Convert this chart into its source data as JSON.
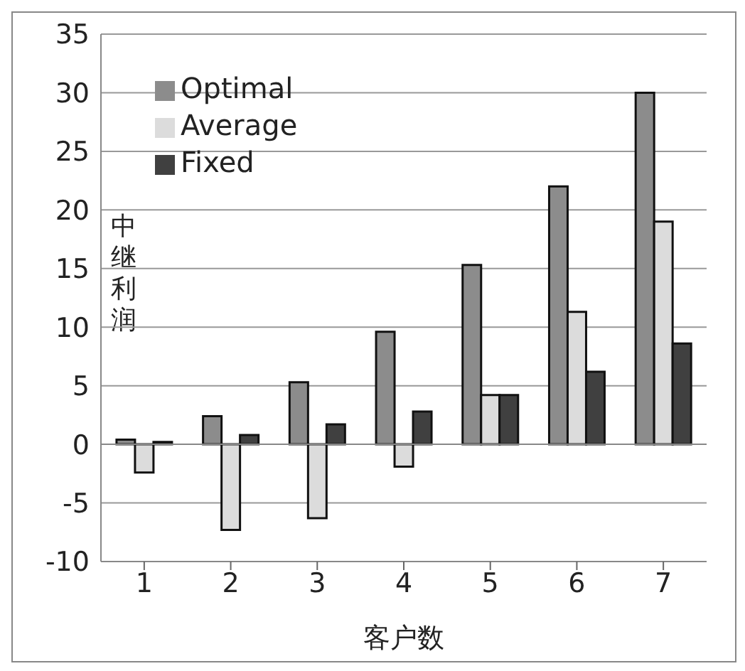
{
  "chart_data": {
    "type": "bar",
    "xlabel": "客户数",
    "ylabel": "中继利润",
    "categories": [
      "1",
      "2",
      "3",
      "4",
      "5",
      "6",
      "7"
    ],
    "series": [
      {
        "name": "Optimal",
        "color": "#8c8c8c",
        "values": [
          0.4,
          2.4,
          5.3,
          9.6,
          15.3,
          22,
          30
        ]
      },
      {
        "name": "Average",
        "color": "#dcdcdc",
        "values": [
          -2.4,
          -7.3,
          -6.3,
          -1.9,
          4.2,
          11.3,
          19
        ]
      },
      {
        "name": "Fixed",
        "color": "#404040",
        "values": [
          0.2,
          0.8,
          1.7,
          2.8,
          4.2,
          6.2,
          8.6
        ]
      }
    ],
    "ylim": [
      -10,
      35
    ],
    "yticks": [
      -10,
      -5,
      0,
      5,
      10,
      15,
      20,
      25,
      30,
      35
    ],
    "grid": "y",
    "legend": "top left"
  }
}
